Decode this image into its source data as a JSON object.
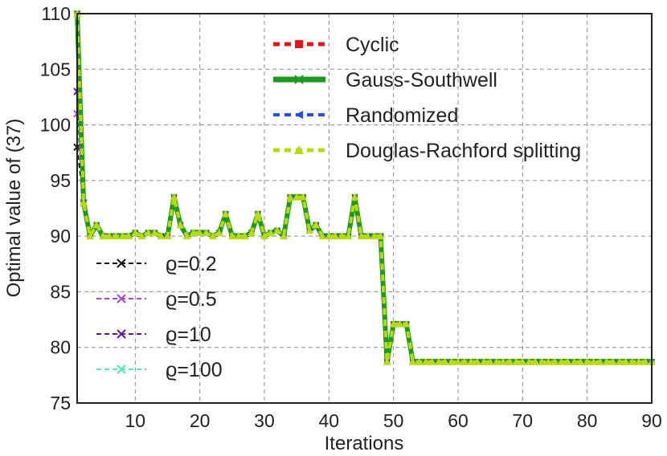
{
  "chart_data": {
    "type": "line",
    "xlabel": "Iterations",
    "ylabel": "Optimal value of (37)",
    "xlim": [
      1,
      90
    ],
    "ylim": [
      75,
      110
    ],
    "xticks": [
      10,
      20,
      30,
      40,
      50,
      60,
      70,
      80,
      90
    ],
    "yticks": [
      75,
      80,
      85,
      90,
      95,
      100,
      105,
      110
    ],
    "grid": true,
    "legend_top_placement": "upper-center",
    "legend_bottom_placement": "lower-left",
    "x": [
      1,
      2,
      3,
      4,
      5,
      6,
      7,
      8,
      9,
      10,
      11,
      12,
      13,
      14,
      15,
      16,
      17,
      18,
      19,
      20,
      21,
      22,
      23,
      24,
      25,
      26,
      27,
      28,
      29,
      30,
      31,
      32,
      33,
      34,
      35,
      36,
      37,
      38,
      39,
      40,
      41,
      42,
      43,
      44,
      45,
      46,
      47,
      48,
      49,
      50,
      51,
      52,
      53,
      54,
      55,
      56,
      57,
      58,
      59,
      60,
      61,
      62,
      63,
      64,
      65,
      66,
      67,
      68,
      69,
      70,
      71,
      72,
      73,
      74,
      75,
      76,
      77,
      78,
      79,
      80,
      81,
      82,
      83,
      84,
      85,
      86,
      87,
      88,
      89,
      90
    ],
    "series": [
      {
        "name": "Cyclic",
        "color": "#e8141a",
        "dash": "8,6",
        "marker": "square",
        "values": [
          110,
          93,
          90,
          91,
          90,
          90,
          90,
          90,
          90,
          90.3,
          90,
          90.3,
          90.3,
          90,
          90,
          93.5,
          91,
          90,
          90.3,
          90.3,
          90.3,
          90,
          90.3,
          92,
          90,
          90,
          90,
          90.3,
          92,
          90,
          90.3,
          90.5,
          90,
          93.5,
          93.5,
          93.5,
          90.5,
          91,
          90,
          90,
          90,
          90,
          90,
          93.5,
          90,
          90,
          90,
          90,
          78.7,
          82.1,
          82.1,
          82.1,
          78.7,
          78.7,
          78.7,
          78.7,
          78.7,
          78.7,
          78.7,
          78.7,
          78.7,
          78.7,
          78.7,
          78.7,
          78.7,
          78.7,
          78.7,
          78.7,
          78.7,
          78.7,
          78.7,
          78.7,
          78.7,
          78.7,
          78.7,
          78.7,
          78.7,
          78.7,
          78.7,
          78.7,
          78.7,
          78.7,
          78.7,
          78.7,
          78.7,
          78.7,
          78.7,
          78.7,
          78.7,
          78.7
        ]
      },
      {
        "name": "Gauss-Southwell",
        "color": "#1e9a1e",
        "dash": "",
        "marker": "x",
        "values": [
          110,
          93,
          90,
          91,
          90,
          90,
          90,
          90,
          90,
          90.3,
          90,
          90.3,
          90.3,
          90,
          90,
          93.5,
          91,
          90,
          90.3,
          90.3,
          90.3,
          90,
          90.3,
          92,
          90,
          90,
          90,
          90.3,
          92,
          90,
          90.3,
          90.5,
          90,
          93.5,
          93.5,
          93.5,
          90.5,
          91,
          90,
          90,
          90,
          90,
          90,
          93.5,
          90,
          90,
          90,
          90,
          78.7,
          82.1,
          82.1,
          82.1,
          78.7,
          78.7,
          78.7,
          78.7,
          78.7,
          78.7,
          78.7,
          78.7,
          78.7,
          78.7,
          78.7,
          78.7,
          78.7,
          78.7,
          78.7,
          78.7,
          78.7,
          78.7,
          78.7,
          78.7,
          78.7,
          78.7,
          78.7,
          78.7,
          78.7,
          78.7,
          78.7,
          78.7,
          78.7,
          78.7,
          78.7,
          78.7,
          78.7,
          78.7,
          78.7,
          78.7,
          78.7,
          78.7
        ]
      },
      {
        "name": "Randomized",
        "color": "#1f4fe6",
        "dash": "8,6",
        "marker": "left",
        "values": [
          110,
          93,
          90,
          91,
          90,
          90,
          90,
          90,
          90,
          90.3,
          90,
          90.3,
          90.3,
          90,
          90,
          93.5,
          91,
          90,
          90.3,
          90.3,
          90.3,
          90,
          90.3,
          92,
          90,
          90,
          90,
          90.3,
          92,
          90,
          90.3,
          90.5,
          90,
          93.5,
          93.5,
          93.5,
          90.5,
          91,
          90,
          90,
          90,
          90,
          90,
          93.5,
          90,
          90,
          90,
          90,
          78.7,
          82.1,
          82.1,
          82.1,
          78.7,
          78.7,
          78.7,
          78.7,
          78.7,
          78.7,
          78.7,
          78.7,
          78.7,
          78.7,
          78.7,
          78.7,
          78.7,
          78.7,
          78.7,
          78.7,
          78.7,
          78.7,
          78.7,
          78.7,
          78.7,
          78.7,
          78.7,
          78.7,
          78.7,
          78.7,
          78.7,
          78.7,
          78.7,
          78.7,
          78.7,
          78.7,
          78.7,
          78.7,
          78.7,
          78.7,
          78.7,
          78.7
        ]
      },
      {
        "name": "Douglas-Rachford splitting",
        "color": "#b8dc0a",
        "dash": "8,6",
        "marker": "triangle",
        "values": [
          110,
          93,
          90,
          91,
          90,
          90,
          90,
          90,
          90,
          90.3,
          90,
          90.3,
          90.3,
          90,
          90,
          93.5,
          91,
          90,
          90.3,
          90.3,
          90.3,
          90,
          90.3,
          92,
          90,
          90,
          90,
          90.3,
          92,
          90,
          90.3,
          90.5,
          90,
          93.5,
          93.5,
          93.5,
          90.5,
          91,
          90,
          90,
          90,
          90,
          90,
          93.5,
          90,
          90,
          90,
          90,
          78.7,
          82.1,
          82.1,
          82.1,
          78.7,
          78.7,
          78.7,
          78.7,
          78.7,
          78.7,
          78.7,
          78.7,
          78.7,
          78.7,
          78.7,
          78.7,
          78.7,
          78.7,
          78.7,
          78.7,
          78.7,
          78.7,
          78.7,
          78.7,
          78.7,
          78.7,
          78.7,
          78.7,
          78.7,
          78.7,
          78.7,
          78.7,
          78.7,
          78.7,
          78.7,
          78.7,
          78.7,
          78.7,
          78.7,
          78.7,
          78.7,
          78.7
        ]
      }
    ],
    "rho_series": [
      {
        "name": "ϱ=0.2",
        "color": "#111111",
        "dash": "6,4",
        "marker": "x",
        "x": [
          1,
          2
        ],
        "values": [
          98,
          93
        ]
      },
      {
        "name": "ϱ=0.5",
        "color": "#b23ee6",
        "dash": "6,4",
        "marker": "x",
        "x": [
          1,
          2
        ],
        "values": [
          101,
          93
        ]
      },
      {
        "name": "ϱ=10",
        "color": "#5a189a",
        "dash": "6,4",
        "marker": "x",
        "x": [
          1,
          2
        ],
        "values": [
          103,
          93
        ]
      },
      {
        "name": "ϱ=100",
        "color": "#4ee8b4",
        "dash": "6,4",
        "marker": "x",
        "x": [
          1,
          2
        ],
        "values": [
          110,
          93
        ]
      }
    ]
  }
}
